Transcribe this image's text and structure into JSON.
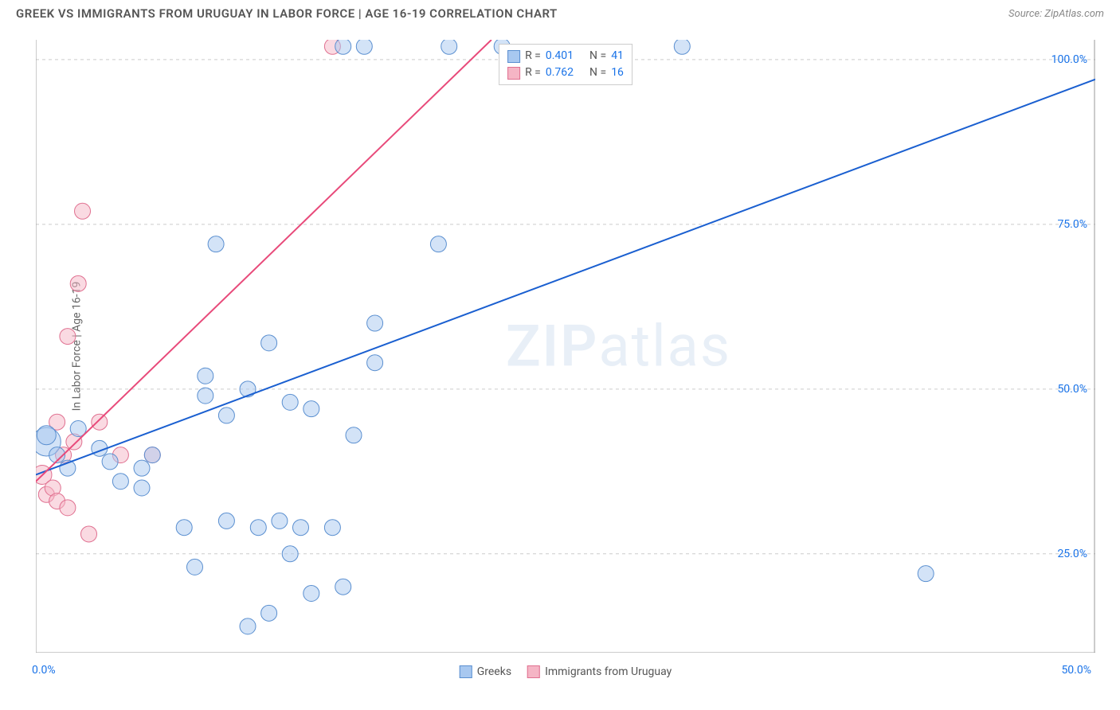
{
  "header": {
    "title": "GREEK VS IMMIGRANTS FROM URUGUAY IN LABOR FORCE | AGE 16-19 CORRELATION CHART",
    "source": "Source: ZipAtlas.com"
  },
  "chart": {
    "type": "scatter",
    "y_axis_label": "In Labor Force | Age 16-19",
    "xlim": [
      0,
      50
    ],
    "ylim": [
      10,
      103
    ],
    "x_tick_labels": {
      "left": "0.0%",
      "right": "50.0%"
    },
    "x_minor_ticks": [
      5,
      10,
      15,
      20,
      25,
      30,
      35,
      40,
      45
    ],
    "y_ticks": [
      {
        "value": 25,
        "label": "25.0%"
      },
      {
        "value": 50,
        "label": "50.0%"
      },
      {
        "value": 75,
        "label": "75.0%"
      },
      {
        "value": 100,
        "label": "100.0%"
      }
    ],
    "grid_color": "#cccccc",
    "grid_dash": "4,4",
    "axis_color": "#999999",
    "background_color": "#ffffff",
    "series": {
      "greeks": {
        "label": "Greeks",
        "fill": "#a8c8f0",
        "fill_opacity": 0.5,
        "stroke": "#5a8fd0",
        "stroke_width": 1,
        "marker_radius": 10,
        "points": [
          {
            "x": 0.5,
            "y": 42,
            "r": 18
          },
          {
            "x": 0.5,
            "y": 43,
            "r": 12
          },
          {
            "x": 1,
            "y": 40,
            "r": 10
          },
          {
            "x": 1.5,
            "y": 38,
            "r": 10
          },
          {
            "x": 2,
            "y": 44,
            "r": 10
          },
          {
            "x": 3,
            "y": 41,
            "r": 10
          },
          {
            "x": 3.5,
            "y": 39,
            "r": 10
          },
          {
            "x": 4,
            "y": 36,
            "r": 10
          },
          {
            "x": 5,
            "y": 38,
            "r": 10
          },
          {
            "x": 5,
            "y": 35,
            "r": 10
          },
          {
            "x": 5.5,
            "y": 40,
            "r": 10
          },
          {
            "x": 7,
            "y": 29,
            "r": 10
          },
          {
            "x": 7.5,
            "y": 23,
            "r": 10
          },
          {
            "x": 8,
            "y": 49,
            "r": 10
          },
          {
            "x": 8,
            "y": 52,
            "r": 10
          },
          {
            "x": 8.5,
            "y": 72,
            "r": 10
          },
          {
            "x": 9,
            "y": 46,
            "r": 10
          },
          {
            "x": 9,
            "y": 30,
            "r": 10
          },
          {
            "x": 10,
            "y": 50,
            "r": 10
          },
          {
            "x": 10,
            "y": 14,
            "r": 10
          },
          {
            "x": 10.5,
            "y": 29,
            "r": 10
          },
          {
            "x": 11,
            "y": 57,
            "r": 10
          },
          {
            "x": 11,
            "y": 16,
            "r": 10
          },
          {
            "x": 11.5,
            "y": 30,
            "r": 10
          },
          {
            "x": 12,
            "y": 48,
            "r": 10
          },
          {
            "x": 12,
            "y": 25,
            "r": 10
          },
          {
            "x": 12.5,
            "y": 29,
            "r": 10
          },
          {
            "x": 13,
            "y": 47,
            "r": 10
          },
          {
            "x": 13,
            "y": 19,
            "r": 10
          },
          {
            "x": 14,
            "y": 29,
            "r": 10
          },
          {
            "x": 14.5,
            "y": 102,
            "r": 10
          },
          {
            "x": 14.5,
            "y": 20,
            "r": 10
          },
          {
            "x": 15,
            "y": 43,
            "r": 10
          },
          {
            "x": 15.5,
            "y": 102,
            "r": 10
          },
          {
            "x": 16,
            "y": 54,
            "r": 10
          },
          {
            "x": 16,
            "y": 60,
            "r": 10
          },
          {
            "x": 19,
            "y": 72,
            "r": 10
          },
          {
            "x": 19.5,
            "y": 102,
            "r": 10
          },
          {
            "x": 30.5,
            "y": 102,
            "r": 10
          },
          {
            "x": 42,
            "y": 22,
            "r": 10
          },
          {
            "x": 22,
            "y": 102,
            "r": 10
          }
        ],
        "regression": {
          "x1": 0,
          "y1": 37,
          "x2": 50,
          "y2": 97,
          "color": "#1a5fd0",
          "width": 2
        },
        "correlation": {
          "r": "0.401",
          "n": "41"
        }
      },
      "uruguay": {
        "label": "Immigrants from Uruguay",
        "fill": "#f5b5c5",
        "fill_opacity": 0.5,
        "stroke": "#e07090",
        "stroke_width": 1,
        "marker_radius": 10,
        "points": [
          {
            "x": 0.3,
            "y": 37,
            "r": 12
          },
          {
            "x": 0.5,
            "y": 34,
            "r": 10
          },
          {
            "x": 0.8,
            "y": 35,
            "r": 10
          },
          {
            "x": 1,
            "y": 45,
            "r": 10
          },
          {
            "x": 1,
            "y": 33,
            "r": 10
          },
          {
            "x": 1.3,
            "y": 40,
            "r": 10
          },
          {
            "x": 1.5,
            "y": 58,
            "r": 10
          },
          {
            "x": 1.5,
            "y": 32,
            "r": 10
          },
          {
            "x": 1.8,
            "y": 42,
            "r": 10
          },
          {
            "x": 2,
            "y": 66,
            "r": 10
          },
          {
            "x": 2.2,
            "y": 77,
            "r": 10
          },
          {
            "x": 2.5,
            "y": 28,
            "r": 10
          },
          {
            "x": 3,
            "y": 45,
            "r": 10
          },
          {
            "x": 4,
            "y": 40,
            "r": 10
          },
          {
            "x": 5.5,
            "y": 40,
            "r": 10
          },
          {
            "x": 14,
            "y": 102,
            "r": 10
          }
        ],
        "regression": {
          "x1": 0,
          "y1": 36,
          "x2": 21.5,
          "y2": 103,
          "color": "#e84a7a",
          "width": 2
        },
        "correlation": {
          "r": "0.762",
          "n": "16"
        }
      }
    },
    "legend_swatches": {
      "greeks": {
        "fill": "#a8c8f0",
        "stroke": "#5a8fd0"
      },
      "uruguay": {
        "fill": "#f5b5c5",
        "stroke": "#e07090"
      }
    },
    "top_legend": {
      "r_label": "R =",
      "n_label": "N ="
    },
    "watermark": {
      "text1": "ZIP",
      "text2": "atlas"
    }
  }
}
